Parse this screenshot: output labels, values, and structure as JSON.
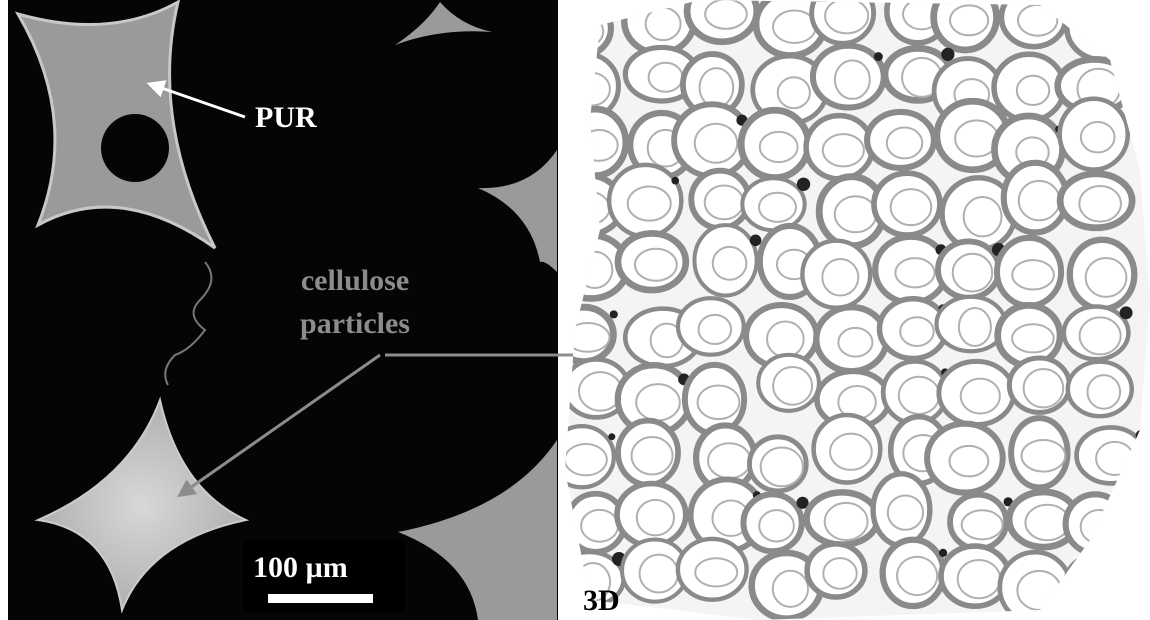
{
  "annotations": {
    "pur": "PUR",
    "cellulose_line1": "cellulose",
    "cellulose_line2": "particles",
    "scale_bar": "100 µm",
    "panel_3d": "3D"
  }
}
